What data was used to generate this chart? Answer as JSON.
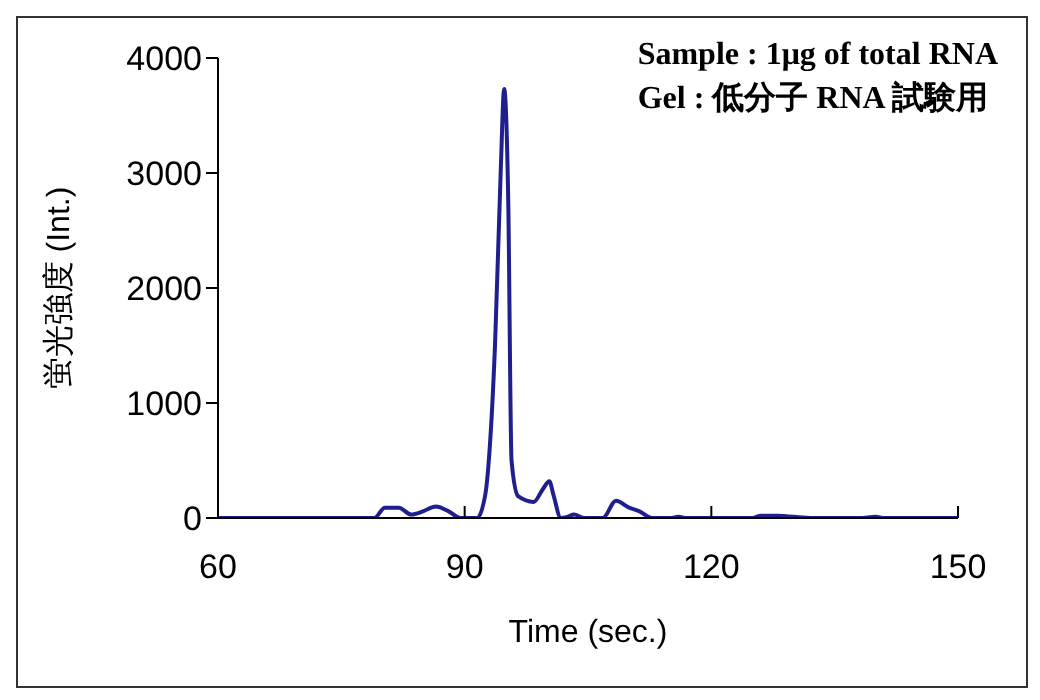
{
  "chart_data": {
    "type": "line",
    "xlabel": "Time (sec.)",
    "ylabel": "蛍光強度 (Int.)",
    "annotations": [
      "Sample : 1μg of total RNA",
      "Gel : 低分子 RNA 試験用"
    ],
    "x": [
      60,
      79,
      80.3,
      82,
      83.5,
      85,
      86.5,
      88,
      89.5,
      91.5,
      92.5,
      93,
      93.7,
      94.4,
      94.8,
      95.3,
      95.7,
      96.5,
      98.4,
      99.5,
      100.3,
      100.8,
      101.7,
      102.5,
      103.3,
      104.5,
      106.8,
      108.4,
      110,
      111.2,
      112.8,
      115,
      116,
      117,
      125,
      126,
      128,
      132,
      138,
      140,
      141,
      150
    ],
    "series": [
      {
        "color": "#1f1f8f",
        "values": [
          0,
          0,
          90,
          90,
          30,
          60,
          100,
          60,
          0,
          0,
          200,
          560,
          1520,
          3050,
          3730,
          2760,
          500,
          190,
          140,
          250,
          320,
          200,
          0,
          10,
          30,
          0,
          0,
          150,
          90,
          60,
          0,
          0,
          10,
          0,
          0,
          20,
          20,
          0,
          0,
          10,
          0,
          0
        ]
      }
    ],
    "xlim": [
      60,
      150
    ],
    "xticks": [
      60,
      90,
      120,
      150
    ],
    "ylim": [
      0,
      4000
    ],
    "yticks": [
      0,
      1000,
      2000,
      3000,
      4000
    ],
    "marker": "none",
    "line_style": "solid"
  }
}
